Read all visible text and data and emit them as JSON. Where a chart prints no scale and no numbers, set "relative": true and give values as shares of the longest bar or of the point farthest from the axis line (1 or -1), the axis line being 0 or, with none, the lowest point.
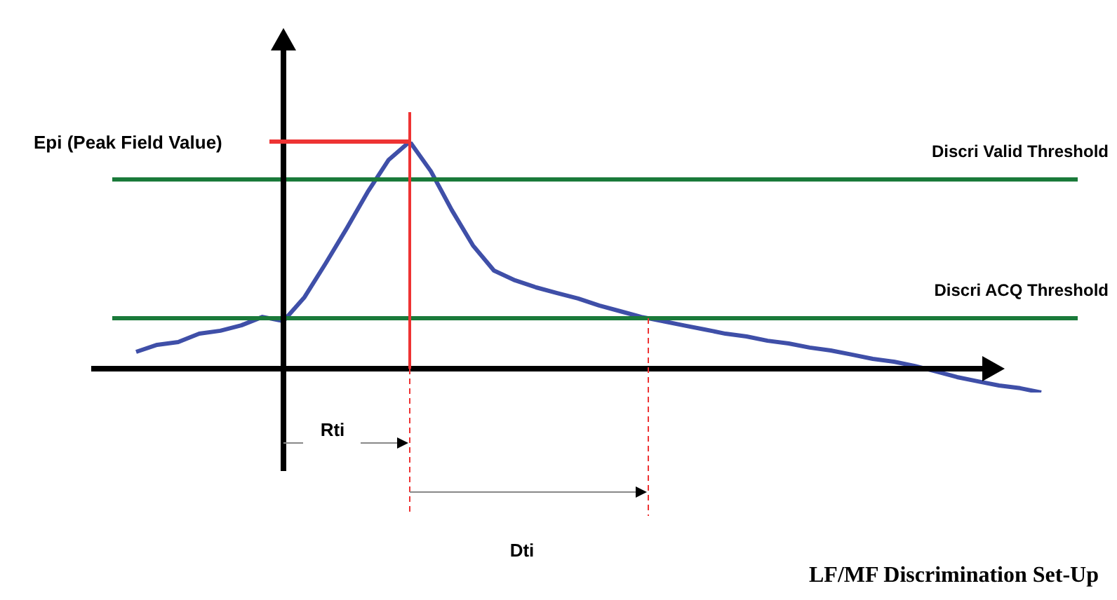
{
  "chart_data": {
    "type": "line",
    "title": "LF/MF Discrimination Set-Up",
    "ylabel": "Epi (Peak Field Value)",
    "relative": true,
    "marker": "none",
    "categories": [
      null,
      null,
      null,
      null,
      null,
      null,
      null,
      null,
      null,
      null,
      null,
      null,
      null,
      null,
      null,
      null,
      null,
      null,
      null,
      null,
      null,
      null,
      null,
      null,
      null,
      null,
      null,
      null,
      null,
      null,
      null,
      null,
      null,
      null,
      null,
      null,
      null,
      null,
      null,
      null,
      null,
      null,
      null,
      null
    ],
    "series": [
      {
        "color": "#3f4fa8",
        "values": [
          0.074,
          0.105,
          0.117,
          0.154,
          0.167,
          0.191,
          0.228,
          0.21,
          0.315,
          0.463,
          0.617,
          0.778,
          0.92,
          1.0,
          0.87,
          0.698,
          0.543,
          0.432,
          0.389,
          0.358,
          0.333,
          0.309,
          0.278,
          0.253,
          0.228,
          0.21,
          0.191,
          0.173,
          0.154,
          0.142,
          0.123,
          0.111,
          0.093,
          0.08,
          0.062,
          0.043,
          0.031,
          0.012,
          -0.012,
          -0.037,
          -0.056,
          -0.074,
          -0.086,
          -0.105
        ]
      }
    ],
    "ref_lines": [
      {
        "axis": "y",
        "value": 0.833,
        "label": "Discri Valid Threshold",
        "color": "#1a7a3a"
      },
      {
        "axis": "y",
        "value": 0.222,
        "label": "Discri ACQ Threshold",
        "color": "#1a7a3a"
      }
    ],
    "annotations": [
      "Rti",
      "Dti"
    ]
  }
}
